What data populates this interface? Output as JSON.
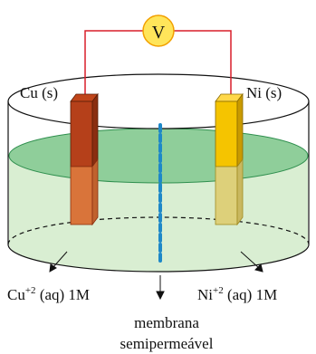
{
  "voltmeter": {
    "symbol": "V"
  },
  "electrodes": {
    "left": {
      "label": "Cu (s)",
      "color_top": "#c0451a",
      "color_side": "#8a2e10",
      "color_submerged": "#d9743a"
    },
    "right": {
      "label": "Ni (s)",
      "color_top": "#f5c400",
      "color_side": "#c99a00",
      "color_submerged": "#ddd07a"
    }
  },
  "solutions": {
    "left": {
      "ion": "Cu",
      "charge": "+2",
      "rest": " (aq) 1M"
    },
    "right": {
      "ion": "Ni",
      "charge": "+2",
      "rest": " (aq) 1M"
    }
  },
  "membrane": {
    "line1": "membrana",
    "line2": "semipermeável",
    "color": "#1e88c8"
  },
  "colors": {
    "wire": "#d81e2a",
    "voltmeter_fill": "#ffe55a",
    "liquid_surface": "#8fce9a",
    "liquid_body": "#d9eed2"
  }
}
